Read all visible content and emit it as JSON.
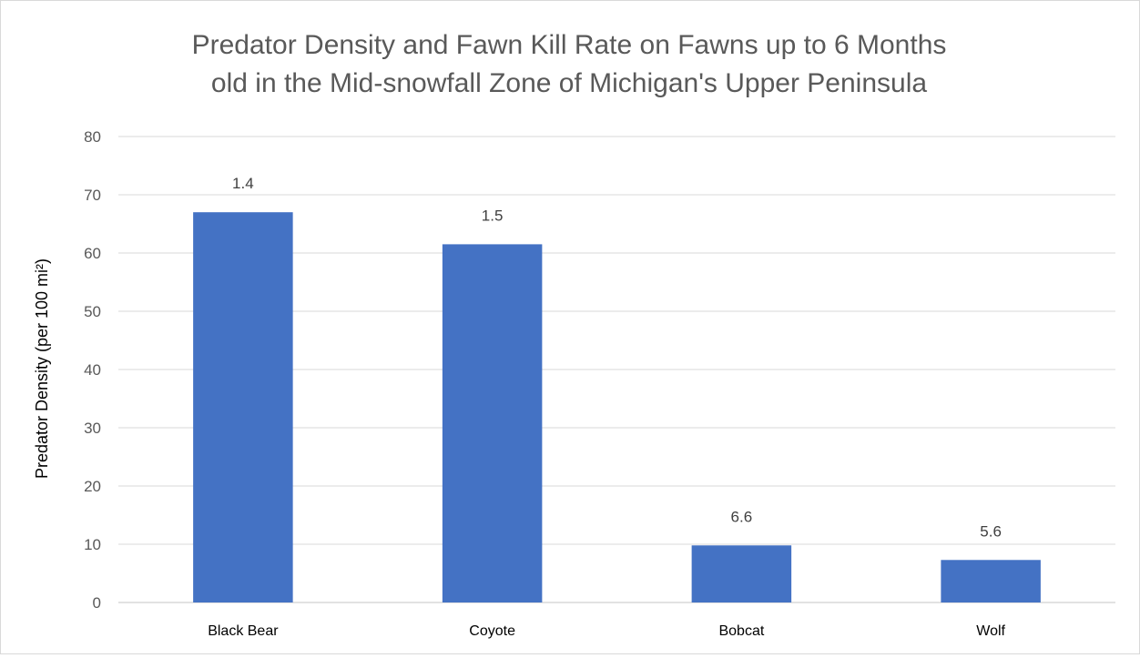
{
  "chart_data": {
    "type": "bar",
    "title_lines": [
      "Predator Density and Fawn Kill Rate on Fawns up to 6 Months",
      "old in the Mid-snowfall Zone of Michigan's Upper Peninsula"
    ],
    "xlabel": "",
    "ylabel": "Predator Density (per 100 mi²)",
    "ylim": [
      0,
      80
    ],
    "yticks": [
      0,
      10,
      20,
      30,
      40,
      50,
      60,
      70,
      80
    ],
    "grid": true,
    "legend": "none",
    "categories": [
      "Black Bear",
      "Coyote",
      "Bobcat",
      "Wolf"
    ],
    "values": [
      67,
      61.5,
      9.8,
      7.3
    ],
    "data_labels": [
      "1.4",
      "1.5",
      "6.6",
      "5.6"
    ],
    "colors": {
      "bar": "#4472c4",
      "grid": "#d9d9d9",
      "axis": "#d9d9d9"
    }
  }
}
